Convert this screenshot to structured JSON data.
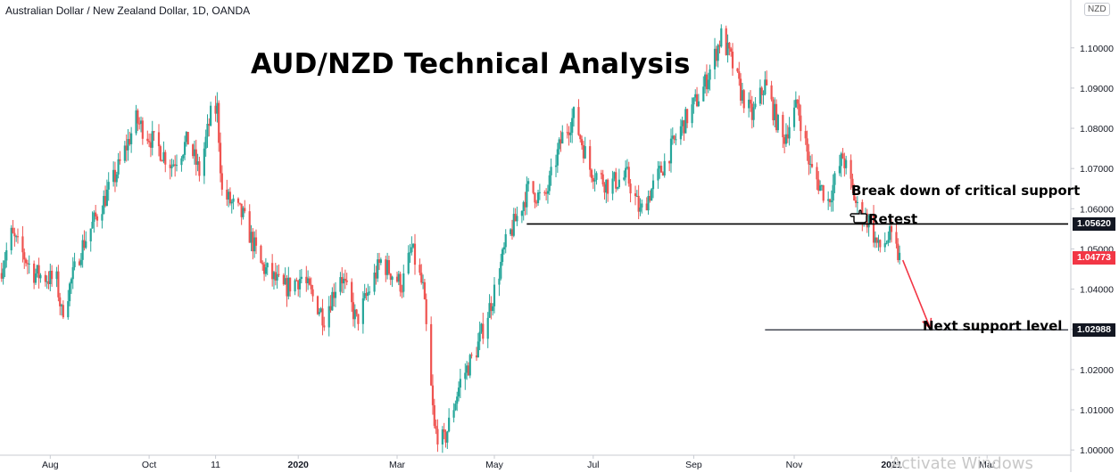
{
  "header": {
    "symbol_title": "Australian Dollar / New Zealand Dollar, 1D, OANDA",
    "currency_label": "NZD"
  },
  "overlay": {
    "headline": "AUD/NZD Technical Analysis",
    "break_note": "Break down of critical support",
    "retest_note": "Retest",
    "next_support_note": "Next support level",
    "watermark": "Activate Windows"
  },
  "colors": {
    "up_candle": "#26a69a",
    "down_candle": "#ef5350",
    "support_line": "#000000",
    "next_support_line": "#363a45",
    "arrow": "#f23645",
    "current_price_badge": "#f23645",
    "level_badge": "#131722",
    "axis_text": "#131722",
    "axis_line": "#c8cbd2"
  },
  "price_badges": {
    "support": "1.05620",
    "current": "1.04773",
    "next_support": "1.02988"
  },
  "chart_data": {
    "type": "candlestick",
    "title": "Australian Dollar / New Zealand Dollar, 1D, OANDA",
    "y_axis_side": "right",
    "ylim": [
      0.9945,
      1.1108
    ],
    "y_ticks": [
      "1.10000",
      "1.09000",
      "1.08000",
      "1.07000",
      "1.06000",
      "1.05000",
      "1.04000",
      "1.03000",
      "1.02000",
      "1.01000",
      "1.00000"
    ],
    "x_ticks": [
      "Aug",
      "Oct",
      "11",
      "2020",
      "Mar",
      "May",
      "Jul",
      "Sep",
      "Nov",
      "2021",
      "Mar"
    ],
    "x_tick_dates": [
      "2019-08-01",
      "2019-10-01",
      "2019-11-11",
      "2020-01-01",
      "2020-03-02",
      "2020-05-01",
      "2020-07-01",
      "2020-09-01",
      "2020-11-02",
      "2021-01-01",
      "2021-03-01"
    ],
    "x_range": [
      "2019-07-01",
      "2021-04-20"
    ],
    "price_path": [
      {
        "date": "2019-07-01",
        "close": 1.044
      },
      {
        "date": "2019-07-08",
        "close": 1.0535
      },
      {
        "date": "2019-07-22",
        "close": 1.044
      },
      {
        "date": "2019-08-05",
        "close": 1.042
      },
      {
        "date": "2019-08-08",
        "close": 1.034
      },
      {
        "date": "2019-08-20",
        "close": 1.05
      },
      {
        "date": "2019-09-10",
        "close": 1.068
      },
      {
        "date": "2019-09-23",
        "close": 1.082
      },
      {
        "date": "2019-10-01",
        "close": 1.078
      },
      {
        "date": "2019-10-15",
        "close": 1.071
      },
      {
        "date": "2019-10-25",
        "close": 1.077
      },
      {
        "date": "2019-11-01",
        "close": 1.069
      },
      {
        "date": "2019-11-08",
        "close": 1.083
      },
      {
        "date": "2019-11-12",
        "close": 1.085
      },
      {
        "date": "2019-11-15",
        "close": 1.064
      },
      {
        "date": "2019-11-28",
        "close": 1.058
      },
      {
        "date": "2019-12-09",
        "close": 1.046
      },
      {
        "date": "2019-12-23",
        "close": 1.04
      },
      {
        "date": "2020-01-03",
        "close": 1.043
      },
      {
        "date": "2020-01-17",
        "close": 1.033
      },
      {
        "date": "2020-01-27",
        "close": 1.044
      },
      {
        "date": "2020-02-06",
        "close": 1.032
      },
      {
        "date": "2020-02-21",
        "close": 1.047
      },
      {
        "date": "2020-03-05",
        "close": 1.041
      },
      {
        "date": "2020-03-11",
        "close": 1.05
      },
      {
        "date": "2020-03-18",
        "close": 1.04
      },
      {
        "date": "2020-03-25",
        "close": 1.005
      },
      {
        "date": "2020-03-31",
        "close": 1.002
      },
      {
        "date": "2020-04-10",
        "close": 1.017
      },
      {
        "date": "2020-04-20",
        "close": 1.025
      },
      {
        "date": "2020-04-30",
        "close": 1.038
      },
      {
        "date": "2020-05-08",
        "close": 1.051
      },
      {
        "date": "2020-05-22",
        "close": 1.065
      },
      {
        "date": "2020-06-01",
        "close": 1.062
      },
      {
        "date": "2020-06-12",
        "close": 1.078
      },
      {
        "date": "2020-06-19",
        "close": 1.083
      },
      {
        "date": "2020-06-29",
        "close": 1.07
      },
      {
        "date": "2020-07-10",
        "close": 1.066
      },
      {
        "date": "2020-07-22",
        "close": 1.068
      },
      {
        "date": "2020-07-30",
        "close": 1.059
      },
      {
        "date": "2020-08-10",
        "close": 1.068
      },
      {
        "date": "2020-08-24",
        "close": 1.08
      },
      {
        "date": "2020-09-07",
        "close": 1.09
      },
      {
        "date": "2020-09-14",
        "close": 1.098
      },
      {
        "date": "2020-09-18",
        "close": 1.103
      },
      {
        "date": "2020-09-24",
        "close": 1.097
      },
      {
        "date": "2020-09-30",
        "close": 1.089
      },
      {
        "date": "2020-10-07",
        "close": 1.083
      },
      {
        "date": "2020-10-15",
        "close": 1.091
      },
      {
        "date": "2020-10-26",
        "close": 1.077
      },
      {
        "date": "2020-11-04",
        "close": 1.086
      },
      {
        "date": "2020-11-12",
        "close": 1.07
      },
      {
        "date": "2020-11-23",
        "close": 1.062
      },
      {
        "date": "2020-12-02",
        "close": 1.073
      },
      {
        "date": "2020-12-11",
        "close": 1.06
      },
      {
        "date": "2020-12-18",
        "close": 1.057
      },
      {
        "date": "2020-12-24",
        "close": 1.05
      },
      {
        "date": "2020-12-31",
        "close": 1.053
      },
      {
        "date": "2021-01-06",
        "close": 1.0477
      }
    ],
    "horizontal_levels": [
      {
        "label": "Break down of critical support",
        "value": 1.0562,
        "from": "2020-05-21"
      },
      {
        "label": "Next support level",
        "value": 1.02988,
        "from": "2020-10-15"
      }
    ],
    "last_price": 1.04773,
    "projection_arrow": {
      "from": {
        "date": "2021-01-08",
        "value": 1.0472
      },
      "to": {
        "date": "2021-01-25",
        "value": 1.0302
      }
    },
    "legend": "none",
    "grid": false
  }
}
